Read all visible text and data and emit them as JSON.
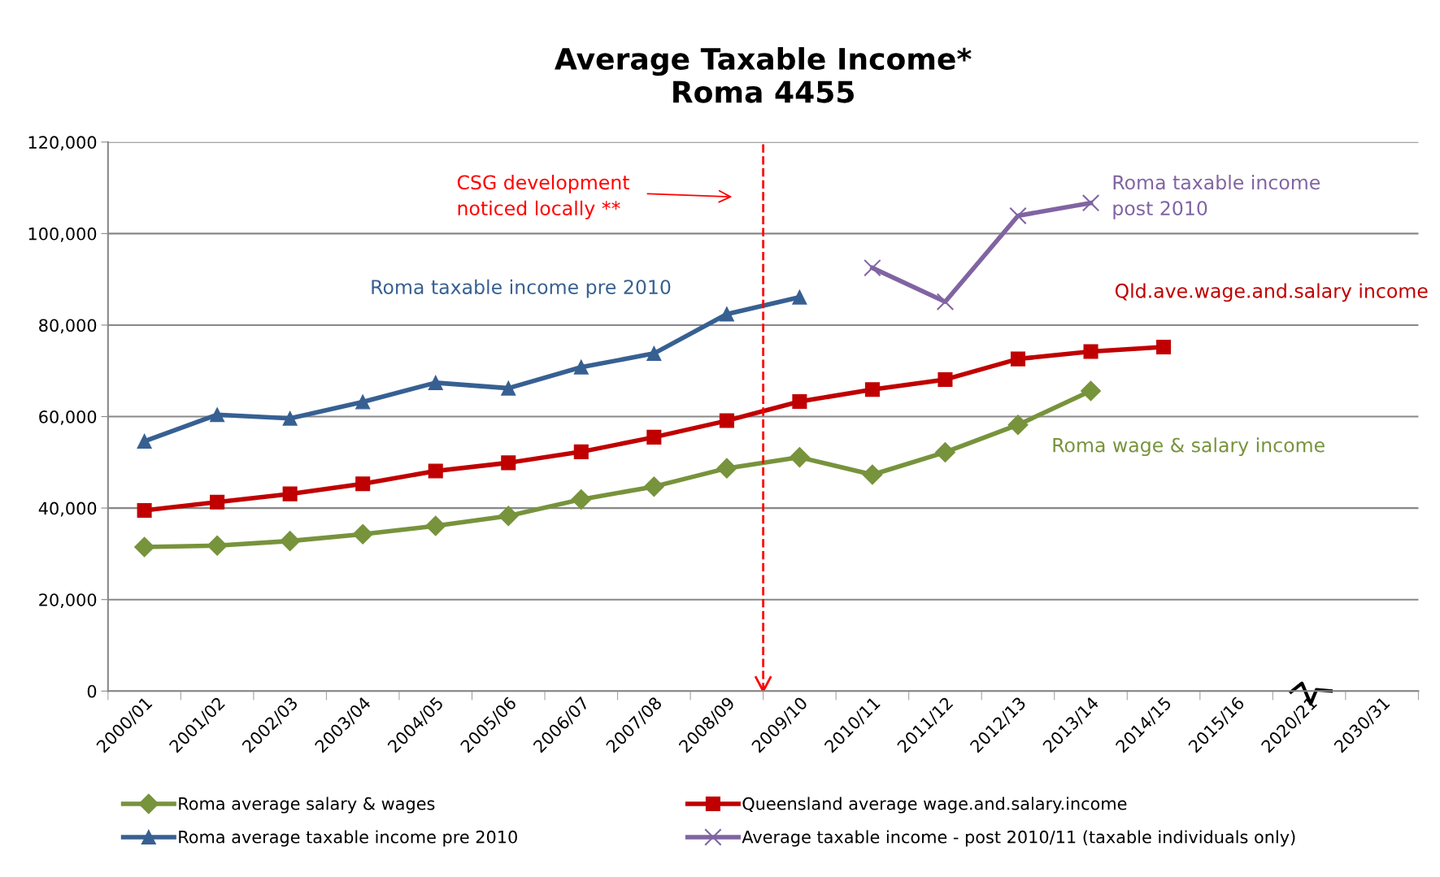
{
  "chart_data": {
    "type": "line",
    "title": "Average Taxable Income*\nRoma 4455",
    "categories": [
      "2000/01",
      "2001/02",
      "2002/03",
      "2003/04",
      "2004/05",
      "2005/06",
      "2006/07",
      "2007/08",
      "2008/09",
      "2009/10",
      "2010/11",
      "2011/12",
      "2012/13",
      "2013/14",
      "2014/15",
      "2015/16",
      "2020/21",
      "2030/31"
    ],
    "series": [
      {
        "name": "Roma average salary & wages",
        "color": "#77933c",
        "marker": "diamond",
        "values": [
          31500,
          31800,
          32800,
          34300,
          36100,
          38300,
          41900,
          44700,
          48700,
          51100,
          47300,
          52200,
          58200,
          65600,
          null,
          null,
          null,
          null
        ]
      },
      {
        "name": "Queensland average wage.and.salary.income",
        "color": "#c00000",
        "marker": "square",
        "values": [
          39500,
          41300,
          43100,
          45300,
          48100,
          49900,
          52300,
          55500,
          59100,
          63300,
          65900,
          68100,
          72600,
          74200,
          75200,
          null,
          null,
          null
        ]
      },
      {
        "name": "Roma average taxable income pre 2010",
        "color": "#376092",
        "marker": "triangle",
        "values": [
          54600,
          60400,
          59600,
          63200,
          67400,
          66200,
          70800,
          73800,
          82400,
          86100,
          null,
          null,
          null,
          null,
          null,
          null,
          null,
          null
        ]
      },
      {
        "name": "Average taxable income - post 2010/11 (taxable individuals only)",
        "color": "#8064a2",
        "marker": "cross",
        "values": [
          null,
          null,
          null,
          null,
          null,
          null,
          null,
          null,
          null,
          null,
          92500,
          85100,
          103900,
          106700,
          null,
          null,
          null,
          null
        ]
      }
    ],
    "ylim": [
      0,
      120000
    ],
    "yticks": [
      {
        "value": 0,
        "label": "0"
      },
      {
        "value": 20000,
        "label": "20,000"
      },
      {
        "value": 40000,
        "label": "40,000"
      },
      {
        "value": 60000,
        "label": "60,000"
      },
      {
        "value": 80000,
        "label": "80,000"
      },
      {
        "value": 100000,
        "label": "100,000"
      },
      {
        "value": 120000,
        "label": "120,000"
      }
    ],
    "ref_lines": [
      {
        "axis": "x",
        "value": "2009/10",
        "color": "#ff0000",
        "line_style": "dashed"
      }
    ],
    "grid": "y",
    "legend": "bottom",
    "line_style": "solid",
    "annotations": [
      "CSG development\nnoticed locally **",
      "Roma taxable income pre 2010",
      "Roma taxable income\npost 2010",
      "Qld.ave.wage.and.salary income",
      "Roma wage & salary income"
    ]
  }
}
